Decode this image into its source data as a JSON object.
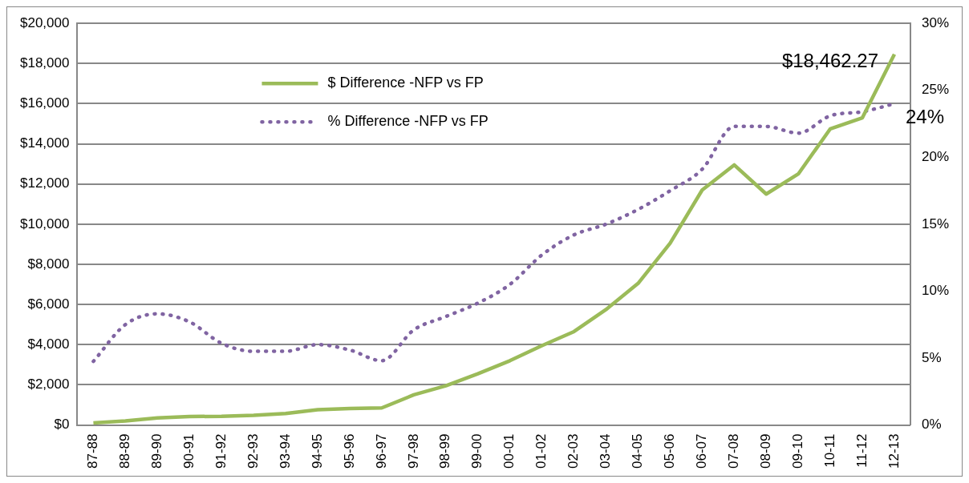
{
  "chart_data": {
    "type": "line",
    "categories": [
      "87-88",
      "88-89",
      "89-90",
      "90-91",
      "91-92",
      "92-93",
      "93-94",
      "94-95",
      "95-96",
      "96-97",
      "97-98",
      "98-99",
      "99-00",
      "00-01",
      "01-02",
      "02-03",
      "03-04",
      "04-05",
      "05-06",
      "06-07",
      "07-08",
      "08-09",
      "09-10",
      "10-11",
      "11-12",
      "12-13"
    ],
    "series": [
      {
        "name": "$ Difference -NFP vs FP",
        "color": "#9bbb59",
        "line_style": "solid",
        "values": [
          100,
          200,
          350,
          420,
          430,
          480,
          570,
          760,
          820,
          850,
          1500,
          1950,
          2550,
          3200,
          3950,
          4650,
          5750,
          7050,
          9050,
          11700,
          12950,
          11500,
          12500,
          14750,
          15300,
          18462.27
        ]
      },
      {
        "name": "% Difference -NFP vs FP",
        "color": "#8064a2",
        "line_style": "dotted",
        "axis": "y2",
        "values": [
          4.75,
          7.5,
          8.3,
          7.7,
          6.1,
          5.5,
          5.5,
          6.0,
          5.6,
          4.8,
          7.1,
          8.1,
          9.1,
          10.5,
          12.7,
          14.2,
          15.0,
          16.1,
          17.5,
          19.1,
          22.3,
          22.3,
          21.8,
          23.1,
          23.4,
          24
        ]
      }
    ],
    "ylim": [
      0,
      20000
    ],
    "yticks": [
      {
        "value": 0,
        "label": "$0"
      },
      {
        "value": 2000,
        "label": "$2,000"
      },
      {
        "value": 4000,
        "label": "$4,000"
      },
      {
        "value": 6000,
        "label": "$6,000"
      },
      {
        "value": 8000,
        "label": "$8,000"
      },
      {
        "value": 10000,
        "label": "$10,000"
      },
      {
        "value": 12000,
        "label": "$12,000"
      },
      {
        "value": 14000,
        "label": "$14,000"
      },
      {
        "value": 16000,
        "label": "$16,000"
      },
      {
        "value": 18000,
        "label": "$18,000"
      },
      {
        "value": 20000,
        "label": "$20,000"
      }
    ],
    "y2lim": [
      0,
      30
    ],
    "y2ticks": [
      {
        "value": 0,
        "label": "0%"
      },
      {
        "value": 5,
        "label": "5%"
      },
      {
        "value": 10,
        "label": "10%"
      },
      {
        "value": 15,
        "label": "15%"
      },
      {
        "value": 20,
        "label": "20%"
      },
      {
        "value": 25,
        "label": "25%"
      },
      {
        "value": 30,
        "label": "30%"
      }
    ],
    "grid": "y",
    "legend": "top left",
    "marker": "none",
    "annotations": [
      {
        "text": "$18,462.27",
        "x": "12-13",
        "y": 18462.27
      },
      "24%"
    ]
  }
}
